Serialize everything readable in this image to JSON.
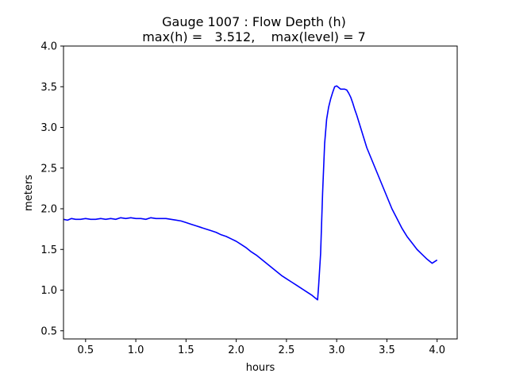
{
  "chart_data": {
    "type": "line",
    "title_line1": "Gauge 1007 : Flow Depth (h)",
    "title_line2": "max(h) =   3.512,    max(level) = 7",
    "xlabel": "hours",
    "ylabel": "meters",
    "xlim": [
      0.28,
      4.2
    ],
    "ylim": [
      0.4,
      4.0
    ],
    "x_ticks": [
      0.5,
      1.0,
      1.5,
      2.0,
      2.5,
      3.0,
      3.5,
      4.0
    ],
    "x_tick_labels": [
      "0.5",
      "1.0",
      "1.5",
      "2.0",
      "2.5",
      "3.0",
      "3.5",
      "4.0"
    ],
    "y_ticks": [
      0.5,
      1.0,
      1.5,
      2.0,
      2.5,
      3.0,
      3.5,
      4.0
    ],
    "y_tick_labels": [
      "0.5",
      "1.0",
      "1.5",
      "2.0",
      "2.5",
      "3.0",
      "3.5",
      "4.0"
    ],
    "grid": false,
    "color": "#0000ff",
    "series": [
      {
        "x": [
          0.28,
          0.32,
          0.36,
          0.4,
          0.45,
          0.5,
          0.55,
          0.6,
          0.65,
          0.7,
          0.75,
          0.8,
          0.85,
          0.9,
          0.95,
          1.0,
          1.05,
          1.1,
          1.15,
          1.2,
          1.25,
          1.3,
          1.35,
          1.4,
          1.45,
          1.5,
          1.55,
          1.6,
          1.65,
          1.7,
          1.75,
          1.8,
          1.85,
          1.9,
          1.95,
          2.0,
          2.05,
          2.1,
          2.15,
          2.2,
          2.25,
          2.3,
          2.35,
          2.4,
          2.45,
          2.5,
          2.55,
          2.6,
          2.65,
          2.7,
          2.75,
          2.78,
          2.8,
          2.81,
          2.82,
          2.84,
          2.86,
          2.88,
          2.9,
          2.92,
          2.94,
          2.96,
          2.98,
          3.0,
          3.02,
          3.04,
          3.06,
          3.08,
          3.1,
          3.12,
          3.14,
          3.16,
          3.18,
          3.2,
          3.25,
          3.3,
          3.35,
          3.4,
          3.45,
          3.5,
          3.55,
          3.6,
          3.65,
          3.7,
          3.75,
          3.8,
          3.85,
          3.9,
          3.95,
          4.0
        ],
        "y": [
          1.87,
          1.86,
          1.88,
          1.87,
          1.87,
          1.88,
          1.87,
          1.87,
          1.88,
          1.87,
          1.88,
          1.87,
          1.89,
          1.88,
          1.89,
          1.88,
          1.88,
          1.87,
          1.89,
          1.88,
          1.88,
          1.88,
          1.87,
          1.86,
          1.85,
          1.83,
          1.81,
          1.79,
          1.77,
          1.75,
          1.73,
          1.71,
          1.68,
          1.66,
          1.63,
          1.6,
          1.56,
          1.52,
          1.47,
          1.43,
          1.38,
          1.33,
          1.28,
          1.23,
          1.18,
          1.14,
          1.1,
          1.06,
          1.02,
          0.98,
          0.94,
          0.91,
          0.89,
          0.88,
          1.05,
          1.45,
          2.2,
          2.8,
          3.1,
          3.25,
          3.35,
          3.43,
          3.5,
          3.51,
          3.49,
          3.47,
          3.47,
          3.47,
          3.46,
          3.42,
          3.37,
          3.3,
          3.22,
          3.15,
          2.95,
          2.75,
          2.6,
          2.45,
          2.3,
          2.15,
          2.0,
          1.88,
          1.76,
          1.66,
          1.58,
          1.5,
          1.44,
          1.38,
          1.33,
          1.37
        ]
      }
    ]
  }
}
